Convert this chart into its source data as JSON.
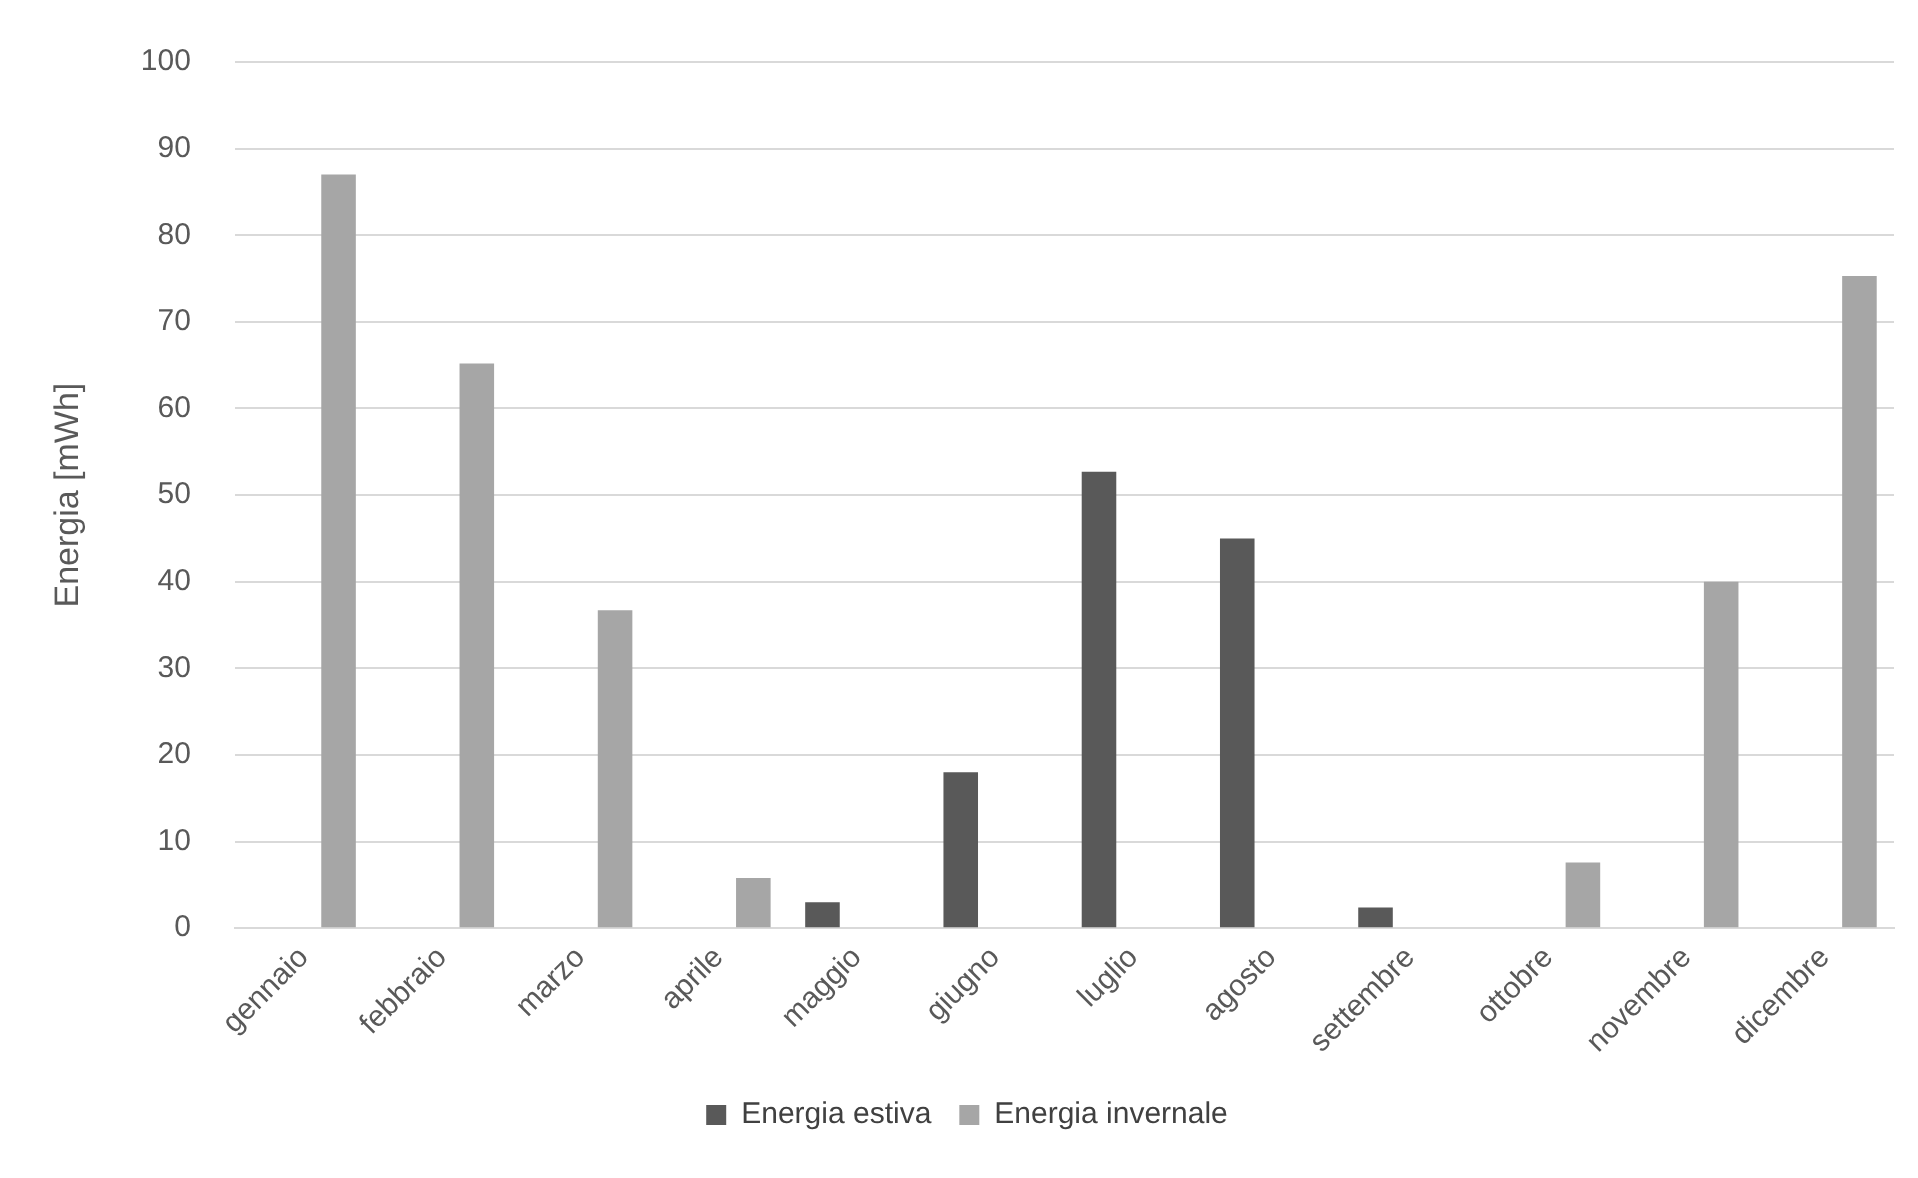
{
  "chart_data": {
    "type": "bar",
    "ylabel": "Energia [mWh]",
    "categories": [
      "gennaio",
      "febbraio",
      "marzo",
      "aprile",
      "maggio",
      "giugno",
      "luglio",
      "agosto",
      "settembre",
      "ottobre",
      "novembre",
      "dicembre"
    ],
    "series": [
      {
        "name": "Energia estiva",
        "color": "#595959",
        "values": [
          null,
          null,
          null,
          null,
          3,
          18,
          52.7,
          45,
          2.4,
          null,
          null,
          null
        ]
      },
      {
        "name": "Energia invernale",
        "color": "#a6a6a6",
        "values": [
          87,
          65.2,
          36.7,
          5.8,
          null,
          null,
          null,
          null,
          null,
          7.6,
          40,
          75.3
        ]
      }
    ],
    "ylim": [
      0,
      100
    ],
    "yticks": [
      0,
      10,
      20,
      30,
      40,
      50,
      60,
      70,
      80,
      90,
      100
    ],
    "grid": "y",
    "legend": "bottom"
  }
}
